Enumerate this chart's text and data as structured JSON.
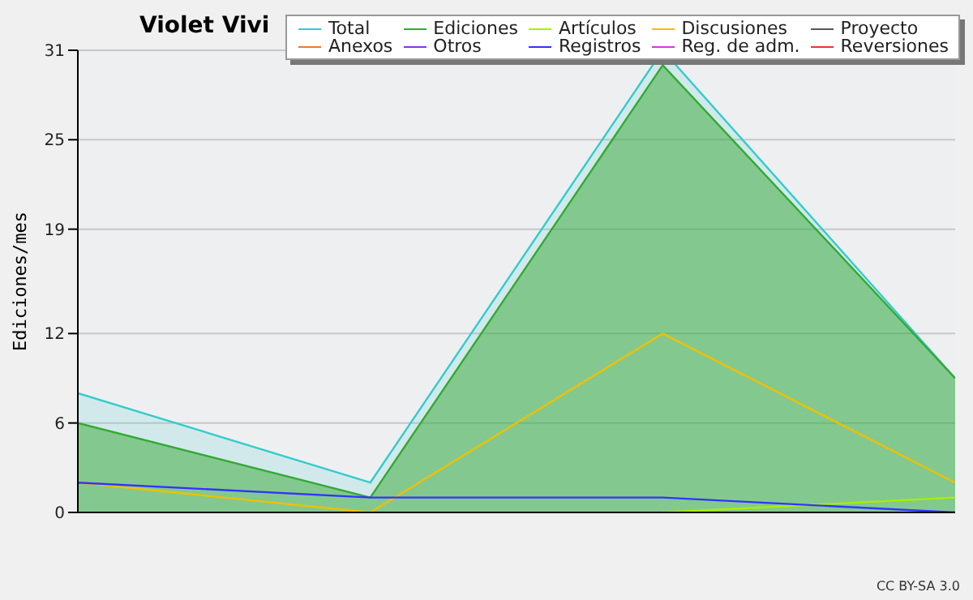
{
  "chart_data": {
    "type": "area",
    "title": "Violet Vivi",
    "ylabel": "Ediciones/mes",
    "annotations": [
      "CC BY-SA 3.0"
    ],
    "categories": [
      null,
      null,
      null,
      null
    ],
    "series": [
      {
        "name": "Total",
        "color": "#33cccc",
        "values": [
          8,
          2,
          31,
          9
        ]
      },
      {
        "name": "Ediciones",
        "color": "#33aa33",
        "values": [
          6,
          1,
          30,
          9
        ]
      },
      {
        "name": "Artículos",
        "type": "line",
        "color": "#aaee00",
        "values": [
          null,
          null,
          0,
          1
        ]
      },
      {
        "name": "Discusiones",
        "type": "line",
        "color": "#f0c000",
        "values": [
          2,
          0,
          12,
          2
        ]
      },
      {
        "name": "Proyecto",
        "type": "line",
        "color": "#555555",
        "values": [
          null,
          null,
          null,
          null
        ]
      },
      {
        "name": "Anexos",
        "type": "line",
        "color": "#ee7733",
        "values": [
          null,
          null,
          null,
          null
        ]
      },
      {
        "name": "Otros",
        "type": "line",
        "color": "#8833ee",
        "values": [
          null,
          null,
          null,
          null
        ]
      },
      {
        "name": "Registros",
        "type": "line",
        "color": "#3333ff",
        "values": [
          2,
          1,
          1,
          0
        ]
      },
      {
        "name": "Reg. de adm.",
        "type": "line",
        "color": "#dd33dd",
        "values": [
          null,
          null,
          null,
          null
        ]
      },
      {
        "name": "Reversiones",
        "type": "line",
        "color": "#ee3333",
        "values": [
          null,
          null,
          null,
          null
        ]
      }
    ],
    "ylim": [
      0,
      31
    ],
    "yticks": [
      0,
      6,
      12,
      19,
      25,
      31
    ],
    "grid": "y",
    "legend": "top right",
    "tick_labels": "y",
    "marker": "none",
    "line_style": "solid"
  }
}
